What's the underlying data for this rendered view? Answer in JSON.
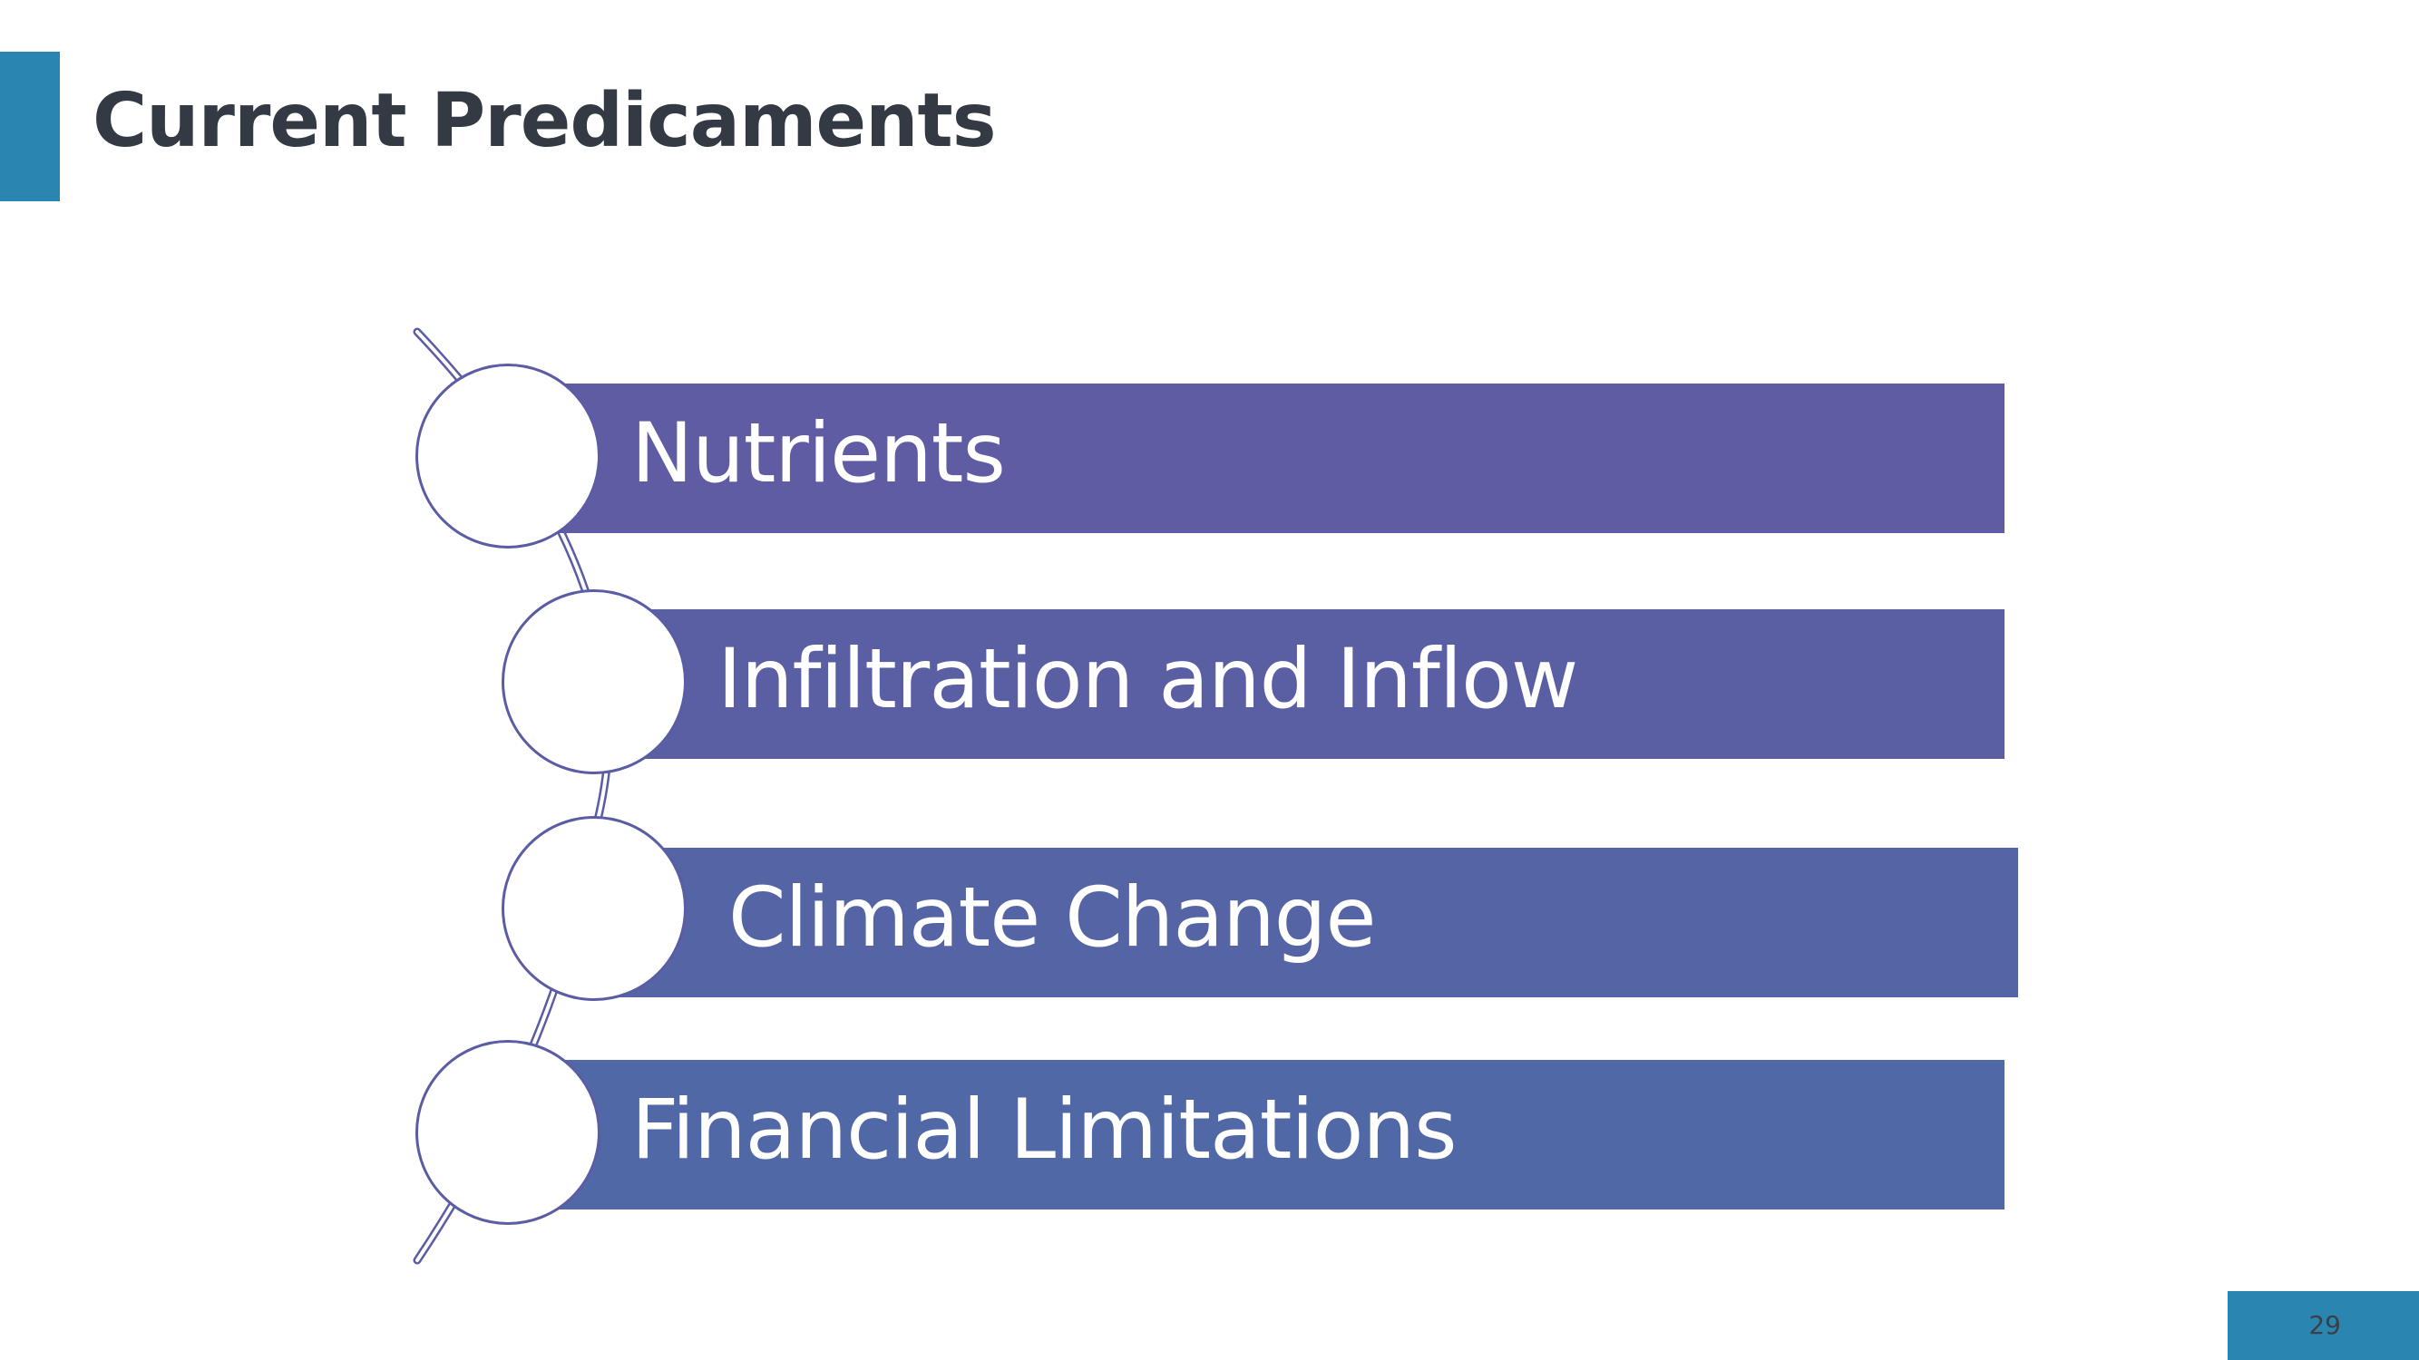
{
  "slide": {
    "title": "Current Predicaments",
    "page_number": "29"
  },
  "colors": {
    "accent": "#2a86b0",
    "title_text": "#333a44",
    "bar_1": "#5f5ca3",
    "bar_2": "#5a5ea3",
    "bar_3": "#5464a5",
    "bar_4": "#5068a6",
    "node_border": "#5a5ca4"
  },
  "diagram": {
    "items": [
      {
        "label": "Nutrients"
      },
      {
        "label": "Infiltration and Inflow"
      },
      {
        "label": "Climate Change"
      },
      {
        "label": "Financial Limitations"
      }
    ]
  }
}
